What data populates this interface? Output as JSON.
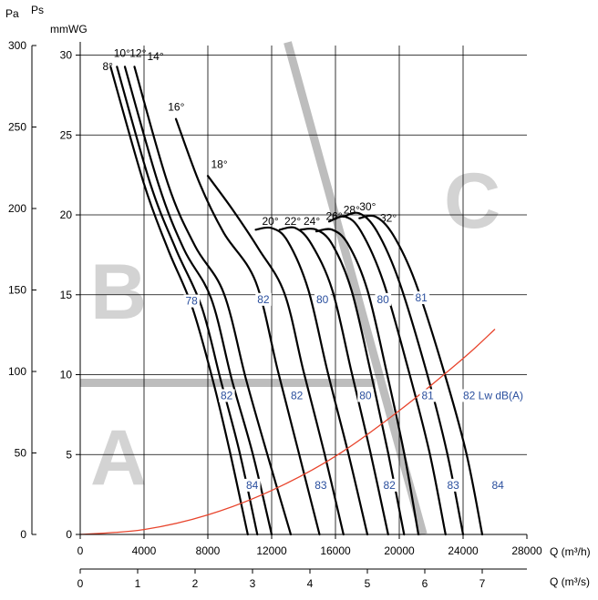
{
  "chart_data": {
    "type": "line",
    "units": {
      "pa": "Pa",
      "ps": "Ps",
      "mmwg": "mmWG",
      "q_m3h": "Q (m³/h)",
      "q_m3s": "Q (m³/s)"
    },
    "axes": {
      "x_m3h": {
        "range": [
          0,
          28000
        ],
        "ticks": [
          "0",
          "4000",
          "8000",
          "12000",
          "16000",
          "20000",
          "24000",
          "28000"
        ]
      },
      "x_m3s": {
        "range": [
          0,
          7.778
        ],
        "ticks": [
          "0",
          "1",
          "2",
          "3",
          "4",
          "5",
          "6",
          "7"
        ]
      },
      "y_pa": {
        "range": [
          0,
          300
        ],
        "ticks": [
          "0",
          "50",
          "100",
          "150",
          "200",
          "250",
          "300"
        ]
      },
      "y_mmwg": {
        "range": [
          0,
          30.6
        ],
        "ticks": [
          "0",
          "5",
          "10",
          "15",
          "20",
          "25",
          "30"
        ]
      },
      "grid": true
    },
    "regions": [
      "A",
      "B",
      "C"
    ],
    "region_bands": {
      "A": {
        "points": [
          [
            0,
            93
          ],
          [
            18500,
            93
          ]
        ]
      },
      "C": {
        "points": [
          [
            13000,
            302
          ],
          [
            21500,
            0
          ]
        ]
      }
    },
    "system_curve": {
      "color": "#e8442c",
      "points": [
        [
          0,
          0
        ],
        [
          4000,
          3
        ],
        [
          8000,
          12
        ],
        [
          12000,
          27
        ],
        [
          16000,
          48
        ],
        [
          20000,
          76
        ],
        [
          24000,
          108
        ],
        [
          26000,
          126
        ]
      ]
    },
    "series": [
      {
        "name": "8°",
        "points": [
          [
            1900,
            287
          ],
          [
            4000,
            215
          ],
          [
            5500,
            175
          ],
          [
            7000,
            140
          ],
          [
            8300,
            95
          ],
          [
            9400,
            50
          ],
          [
            10500,
            0
          ]
        ]
      },
      {
        "name": "10°",
        "points": [
          [
            2300,
            287
          ],
          [
            4400,
            215
          ],
          [
            6000,
            175
          ],
          [
            7600,
            140
          ],
          [
            8800,
            95
          ],
          [
            10000,
            50
          ],
          [
            11100,
            0
          ]
        ]
      },
      {
        "name": "12°",
        "points": [
          [
            2800,
            287
          ],
          [
            4900,
            215
          ],
          [
            6500,
            175
          ],
          [
            8200,
            145
          ],
          [
            9500,
            95
          ],
          [
            10800,
            50
          ],
          [
            12000,
            0
          ]
        ]
      },
      {
        "name": "14°",
        "points": [
          [
            3400,
            287
          ],
          [
            5500,
            215
          ],
          [
            7200,
            177
          ],
          [
            9000,
            148
          ],
          [
            10400,
            95
          ],
          [
            11700,
            50
          ],
          [
            13200,
            0
          ]
        ]
      },
      {
        "name": "16°",
        "points": [
          [
            6000,
            255
          ],
          [
            7500,
            215
          ],
          [
            9000,
            185
          ],
          [
            11000,
            155
          ],
          [
            12400,
            100
          ],
          [
            13700,
            50
          ],
          [
            15000,
            0
          ]
        ]
      },
      {
        "name": "18°",
        "points": [
          [
            8000,
            220
          ],
          [
            9500,
            200
          ],
          [
            11200,
            175
          ],
          [
            12800,
            148
          ],
          [
            14000,
            100
          ],
          [
            15300,
            50
          ],
          [
            16500,
            0
          ]
        ]
      },
      {
        "name": "20°",
        "points": [
          [
            11000,
            187
          ],
          [
            12000,
            188
          ],
          [
            13000,
            180
          ],
          [
            14300,
            150
          ],
          [
            15500,
            100
          ],
          [
            16800,
            50
          ],
          [
            18000,
            0
          ]
        ]
      },
      {
        "name": "22°",
        "points": [
          [
            12500,
            187
          ],
          [
            13500,
            188
          ],
          [
            14500,
            178
          ],
          [
            15800,
            150
          ],
          [
            17000,
            100
          ],
          [
            18200,
            50
          ],
          [
            19300,
            0
          ]
        ]
      },
      {
        "name": "24°",
        "points": [
          [
            13800,
            187
          ],
          [
            14800,
            187
          ],
          [
            15800,
            178
          ],
          [
            17000,
            150
          ],
          [
            18200,
            100
          ],
          [
            19300,
            50
          ],
          [
            20300,
            0
          ]
        ]
      },
      {
        "name": "26°",
        "points": [
          [
            14800,
            186
          ],
          [
            15800,
            187
          ],
          [
            16800,
            178
          ],
          [
            18000,
            150
          ],
          [
            19200,
            100
          ],
          [
            20300,
            50
          ],
          [
            21200,
            0
          ]
        ]
      },
      {
        "name": "28°",
        "points": [
          [
            15600,
            192
          ],
          [
            16600,
            195
          ],
          [
            17600,
            186
          ],
          [
            19000,
            155
          ],
          [
            20600,
            100
          ],
          [
            21900,
            50
          ],
          [
            22900,
            0
          ]
        ]
      },
      {
        "name": "30°",
        "points": [
          [
            16500,
            195
          ],
          [
            17500,
            197
          ],
          [
            18600,
            186
          ],
          [
            20000,
            155
          ],
          [
            21700,
            100
          ],
          [
            23000,
            50
          ],
          [
            24000,
            0
          ]
        ]
      },
      {
        "name": "32°",
        "points": [
          [
            17500,
            194
          ],
          [
            18500,
            195
          ],
          [
            19600,
            184
          ],
          [
            21000,
            155
          ],
          [
            22800,
            100
          ],
          [
            24200,
            50
          ],
          [
            25200,
            0
          ]
        ]
      }
    ],
    "angle_labels": [
      {
        "text": "8°",
        "x": 1400,
        "y": 285
      },
      {
        "text": "10°",
        "x": 2100,
        "y": 293
      },
      {
        "text": "12°",
        "x": 3100,
        "y": 293
      },
      {
        "text": "14°",
        "x": 4200,
        "y": 291
      },
      {
        "text": "16°",
        "x": 5500,
        "y": 260
      },
      {
        "text": "18°",
        "x": 8200,
        "y": 225
      },
      {
        "text": "20°",
        "x": 11400,
        "y": 190
      },
      {
        "text": "22°",
        "x": 12800,
        "y": 190
      },
      {
        "text": "24°",
        "x": 14000,
        "y": 190
      },
      {
        "text": "26°",
        "x": 15400,
        "y": 193
      },
      {
        "text": "28°",
        "x": 16500,
        "y": 197
      },
      {
        "text": "30°",
        "x": 17500,
        "y": 199
      },
      {
        "text": "32°",
        "x": 18800,
        "y": 192
      }
    ],
    "sound_labels": [
      {
        "text": "78",
        "x": 6600,
        "y": 141
      },
      {
        "text": "82",
        "x": 11100,
        "y": 142
      },
      {
        "text": "80",
        "x": 14800,
        "y": 142
      },
      {
        "text": "80",
        "x": 18600,
        "y": 142
      },
      {
        "text": "81",
        "x": 21000,
        "y": 143
      },
      {
        "text": "82",
        "x": 8800,
        "y": 83
      },
      {
        "text": "82",
        "x": 13200,
        "y": 83
      },
      {
        "text": "80",
        "x": 17500,
        "y": 83
      },
      {
        "text": "81",
        "x": 21400,
        "y": 83
      },
      {
        "text": "82 Lw dB(A)",
        "x": 24000,
        "y": 83
      },
      {
        "text": "84",
        "x": 10400,
        "y": 28
      },
      {
        "text": "83",
        "x": 14700,
        "y": 28
      },
      {
        "text": "82",
        "x": 19000,
        "y": 28
      },
      {
        "text": "83",
        "x": 23000,
        "y": 28
      },
      {
        "text": "84",
        "x": 25800,
        "y": 28
      }
    ]
  }
}
